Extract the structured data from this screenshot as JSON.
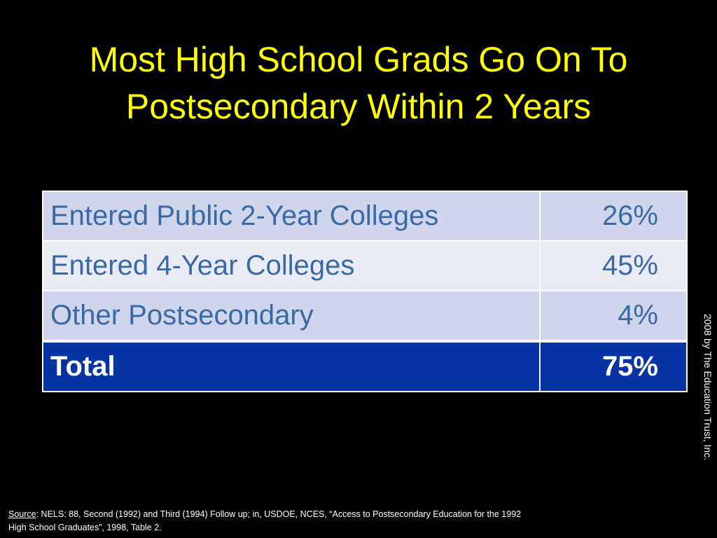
{
  "title": "Most High School Grads Go On To Postsecondary Within 2 Years",
  "table": {
    "rows": [
      [
        "Entered Public 2-Year Colleges",
        "26%"
      ],
      [
        "Entered 4-Year Colleges",
        "45%"
      ],
      [
        "Other Postsecondary",
        "4%"
      ],
      [
        "Total",
        "75%"
      ]
    ]
  },
  "copyright": "2008 by The Education Trust, Inc.",
  "footnote": {
    "label": "Source",
    "lines": [
      ": NELS: 88, Second (1992) and Third (1994) Follow up; in, USDOE, NCES, “Access to Postsecondary Education for the 1992",
      "High School Graduates”, 1998, Table 2."
    ]
  }
}
